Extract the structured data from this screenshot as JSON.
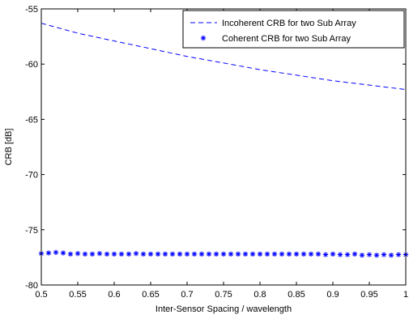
{
  "chart_data": {
    "type": "line",
    "xlabel": "Inter-Sensor Spacing / wavelength",
    "ylabel": "CRB [dB]",
    "xlim": [
      0.5,
      1
    ],
    "ylim": [
      -80,
      -55
    ],
    "xticks": [
      0.5,
      0.55,
      0.6,
      0.65,
      0.7,
      0.75,
      0.8,
      0.85,
      0.9,
      0.95,
      1
    ],
    "xtick_labels": [
      "0.5",
      "0.55",
      "0.6",
      "0.65",
      "0.7",
      "0.75",
      "0.8",
      "0.85",
      "0.9",
      "0.95",
      "1"
    ],
    "yticks": [
      -80,
      -75,
      -70,
      -65,
      -60,
      -55
    ],
    "ytick_labels": [
      "-80",
      "-75",
      "-70",
      "-65",
      "-60",
      "-55"
    ],
    "grid": false,
    "legend_position": "top-right",
    "colors": {
      "series": "#0000ff",
      "axes": "#000000"
    },
    "series": [
      {
        "name": "Incoherent CRB for two Sub Array",
        "style": "dashed",
        "x": [
          0.5,
          0.55,
          0.6,
          0.65,
          0.7,
          0.75,
          0.8,
          0.85,
          0.9,
          0.95,
          1.0
        ],
        "y": [
          -56.3,
          -57.2,
          -57.9,
          -58.6,
          -59.3,
          -59.9,
          -60.5,
          -61.0,
          -61.5,
          -61.9,
          -62.3
        ]
      },
      {
        "name": "Coherent CRB for two Sub Array",
        "style": "markers-asterisk",
        "x": [
          0.5,
          0.51,
          0.52,
          0.53,
          0.54,
          0.55,
          0.56,
          0.57,
          0.58,
          0.59,
          0.6,
          0.61,
          0.62,
          0.63,
          0.64,
          0.65,
          0.66,
          0.67,
          0.68,
          0.69,
          0.7,
          0.71,
          0.72,
          0.73,
          0.74,
          0.75,
          0.76,
          0.77,
          0.78,
          0.79,
          0.8,
          0.81,
          0.82,
          0.83,
          0.84,
          0.85,
          0.86,
          0.87,
          0.88,
          0.89,
          0.9,
          0.91,
          0.92,
          0.93,
          0.94,
          0.95,
          0.96,
          0.97,
          0.98,
          0.99,
          1.0
        ],
        "y": [
          -77.15,
          -77.1,
          -77.05,
          -77.1,
          -77.2,
          -77.15,
          -77.2,
          -77.2,
          -77.15,
          -77.2,
          -77.2,
          -77.2,
          -77.2,
          -77.15,
          -77.2,
          -77.2,
          -77.2,
          -77.2,
          -77.2,
          -77.2,
          -77.2,
          -77.2,
          -77.2,
          -77.2,
          -77.2,
          -77.2,
          -77.2,
          -77.2,
          -77.2,
          -77.2,
          -77.2,
          -77.2,
          -77.2,
          -77.2,
          -77.2,
          -77.2,
          -77.2,
          -77.2,
          -77.2,
          -77.25,
          -77.2,
          -77.25,
          -77.25,
          -77.2,
          -77.3,
          -77.25,
          -77.3,
          -77.25,
          -77.3,
          -77.25,
          -77.25
        ]
      }
    ]
  }
}
